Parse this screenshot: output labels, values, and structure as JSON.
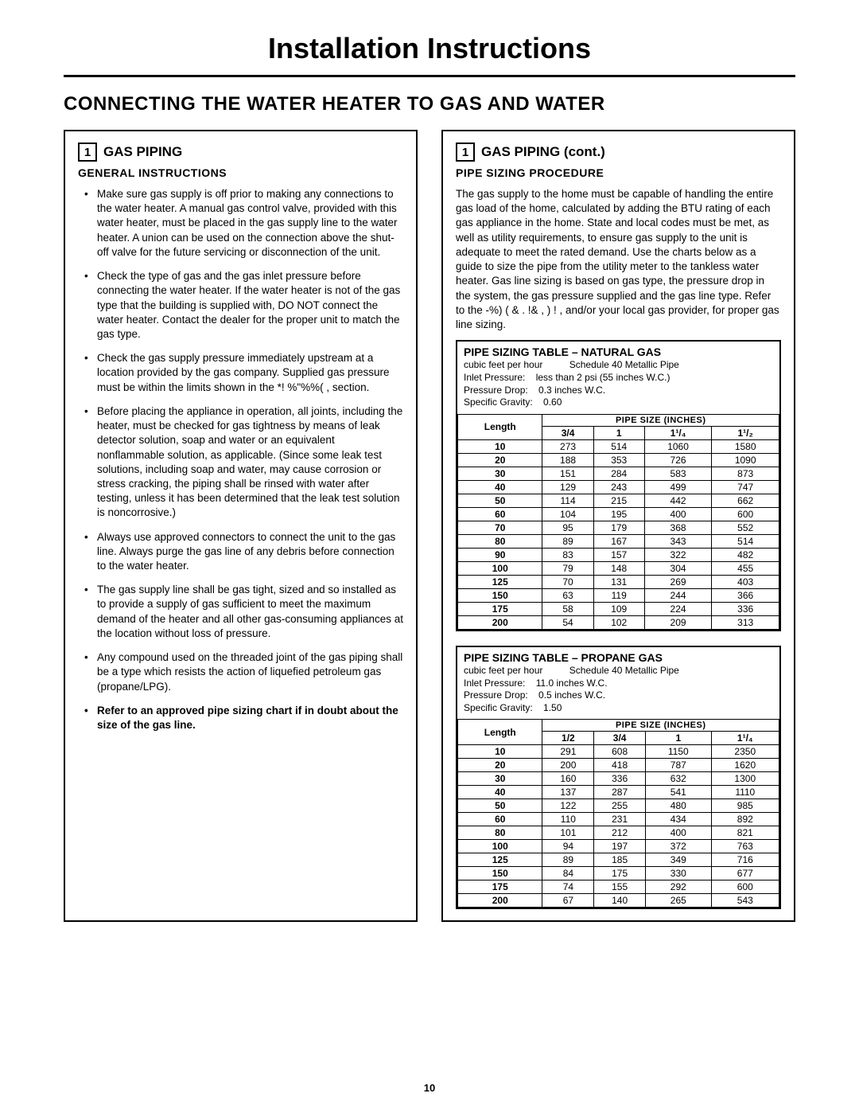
{
  "document_title": "Installation Instructions",
  "section_heading": "CONNECTING THE WATER HEATER TO GAS AND WATER",
  "page_number": "10",
  "left": {
    "step_number": "1",
    "step_label": "GAS PIPING",
    "subheading": "GENERAL INSTRUCTIONS",
    "bullets": [
      "Make sure gas supply is off prior to making any connections to the water heater. A manual gas control valve, provided with this water heater, must be placed in the gas supply line to the water heater. A union can be used on the connection above the shut-off valve for the future servicing or disconnection of the unit.",
      "Check the type of gas and the gas inlet pressure before connecting the water heater. If the water heater is not of the gas type that the building is supplied with, DO NOT connect the water heater. Contact the dealer for the proper unit to match the gas type.",
      "Check the gas supply pressure immediately upstream at a location provided by the gas company. Supplied gas pressure must be within the limits shown in the  *!   %\"%%(  ,  section.",
      "Before placing the appliance in operation, all joints, including the heater, must be checked for gas tightness by means of leak detector solution, soap and water or an equivalent nonflammable solution, as applicable. (Since some leak test solutions, including soap and water, may cause corrosion or stress cracking, the piping shall be rinsed with water after testing, unless it has been determined that the leak test solution is noncorrosive.)",
      "Always use approved connectors to connect the unit to the gas line. Always purge the gas line of any debris before connection to the water heater.",
      "The gas supply line shall be gas tight, sized and so installed as to provide a supply of gas sufficient to meet the maximum demand of the heater and all other gas-consuming appliances at the location without loss of pressure.",
      "Any compound used on the threaded joint of the gas piping shall be a type which resists the action of liquefied petroleum gas (propane/LPG)."
    ],
    "last_bullet_bold": "Refer to an approved pipe sizing chart if in doubt about the size of the gas line."
  },
  "right": {
    "step_number": "1",
    "step_label": "GAS PIPING (cont.)",
    "subheading": "PIPE SIZING PROCEDURE",
    "paragraph": "The gas supply to the home must be capable of handling the entire gas load of the home, calculated by adding the BTU rating of each gas appliance in the home. State and local codes must be met, as well as utility requirements, to ensure gas supply to the unit is adequate to meet the rated demand. Use the charts below as a guide to size the pipe from the utility meter to the tankless water heater. Gas line sizing is based on gas type, the pressure drop in the system, the gas pressure supplied and the gas line type. Refer to the   -%) (  & .  !&   ,   )  !                 , and/or your local gas provider, for proper gas line sizing.",
    "table1": {
      "title": "PIPE SIZING TABLE – NATURAL GAS",
      "meta_line1a": "cubic feet per hour",
      "meta_line1b": "Schedule 40 Metallic Pipe",
      "inlet_pressure_label": "Inlet Pressure:",
      "inlet_pressure": "less than 2 psi (55 inches W.C.)",
      "pressure_drop_label": "Pressure Drop:",
      "pressure_drop": "0.3 inches W.C.",
      "specific_gravity_label": "Specific Gravity:",
      "specific_gravity": "0.60",
      "pipe_size_header": "PIPE SIZE (INCHES)",
      "length_label": "Length",
      "sizes": [
        "3/4",
        "1",
        "1¹/₄",
        "1¹/₂"
      ],
      "rows": [
        [
          "10",
          "273",
          "514",
          "1060",
          "1580"
        ],
        [
          "20",
          "188",
          "353",
          "726",
          "1090"
        ],
        [
          "30",
          "151",
          "284",
          "583",
          "873"
        ],
        [
          "40",
          "129",
          "243",
          "499",
          "747"
        ],
        [
          "50",
          "114",
          "215",
          "442",
          "662"
        ],
        [
          "60",
          "104",
          "195",
          "400",
          "600"
        ],
        [
          "70",
          "95",
          "179",
          "368",
          "552"
        ],
        [
          "80",
          "89",
          "167",
          "343",
          "514"
        ],
        [
          "90",
          "83",
          "157",
          "322",
          "482"
        ],
        [
          "100",
          "79",
          "148",
          "304",
          "455"
        ],
        [
          "125",
          "70",
          "131",
          "269",
          "403"
        ],
        [
          "150",
          "63",
          "119",
          "244",
          "366"
        ],
        [
          "175",
          "58",
          "109",
          "224",
          "336"
        ],
        [
          "200",
          "54",
          "102",
          "209",
          "313"
        ]
      ]
    },
    "table2": {
      "title": "PIPE SIZING TABLE – PROPANE GAS",
      "meta_line1a": "cubic feet per hour",
      "meta_line1b": "Schedule 40 Metallic Pipe",
      "inlet_pressure_label": "Inlet Pressure:",
      "inlet_pressure": "11.0 inches W.C.",
      "pressure_drop_label": "Pressure Drop:",
      "pressure_drop": "0.5 inches W.C.",
      "specific_gravity_label": "Specific Gravity:",
      "specific_gravity": "1.50",
      "pipe_size_header": "PIPE SIZE (INCHES)",
      "length_label": "Length",
      "sizes": [
        "1/2",
        "3/4",
        "1",
        "1¹/₄"
      ],
      "rows": [
        [
          "10",
          "291",
          "608",
          "1150",
          "2350"
        ],
        [
          "20",
          "200",
          "418",
          "787",
          "1620"
        ],
        [
          "30",
          "160",
          "336",
          "632",
          "1300"
        ],
        [
          "40",
          "137",
          "287",
          "541",
          "1110"
        ],
        [
          "50",
          "122",
          "255",
          "480",
          "985"
        ],
        [
          "60",
          "110",
          "231",
          "434",
          "892"
        ],
        [
          "80",
          "101",
          "212",
          "400",
          "821"
        ],
        [
          "100",
          "94",
          "197",
          "372",
          "763"
        ],
        [
          "125",
          "89",
          "185",
          "349",
          "716"
        ],
        [
          "150",
          "84",
          "175",
          "330",
          "677"
        ],
        [
          "175",
          "74",
          "155",
          "292",
          "600"
        ],
        [
          "200",
          "67",
          "140",
          "265",
          "543"
        ]
      ]
    }
  }
}
